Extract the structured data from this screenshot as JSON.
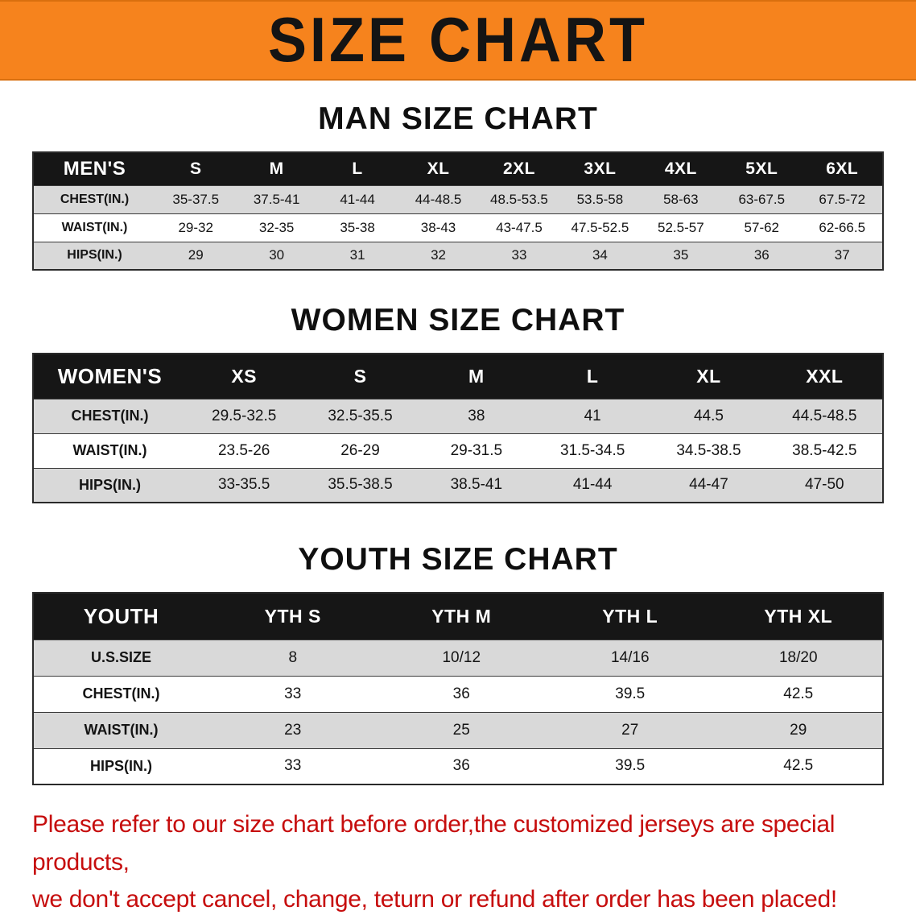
{
  "banner": {
    "title": "SIZE CHART"
  },
  "sections": [
    {
      "heading": "MAN SIZE CHART",
      "table": {
        "header": [
          "MEN'S",
          "S",
          "M",
          "L",
          "XL",
          "2XL",
          "3XL",
          "4XL",
          "5XL",
          "6XL"
        ],
        "rows": [
          [
            "CHEST(IN.)",
            "35-37.5",
            "37.5-41",
            "41-44",
            "44-48.5",
            "48.5-53.5",
            "53.5-58",
            "58-63",
            "63-67.5",
            "67.5-72"
          ],
          [
            "WAIST(IN.)",
            "29-32",
            "32-35",
            "35-38",
            "38-43",
            "43-47.5",
            "47.5-52.5",
            "52.5-57",
            "57-62",
            "62-66.5"
          ],
          [
            "HIPS(IN.)",
            "29",
            "30",
            "31",
            "32",
            "33",
            "34",
            "35",
            "36",
            "37"
          ]
        ]
      }
    },
    {
      "heading": "WOMEN SIZE CHART",
      "table": {
        "header": [
          "WOMEN'S",
          "XS",
          "S",
          "M",
          "L",
          "XL",
          "XXL"
        ],
        "rows": [
          [
            "CHEST(IN.)",
            "29.5-32.5",
            "32.5-35.5",
            "38",
            "41",
            "44.5",
            "44.5-48.5"
          ],
          [
            "WAIST(IN.)",
            "23.5-26",
            "26-29",
            "29-31.5",
            "31.5-34.5",
            "34.5-38.5",
            "38.5-42.5"
          ],
          [
            "HIPS(IN.)",
            "33-35.5",
            "35.5-38.5",
            "38.5-41",
            "41-44",
            "44-47",
            "47-50"
          ]
        ]
      }
    },
    {
      "heading": "YOUTH SIZE CHART",
      "table": {
        "header": [
          "YOUTH",
          "YTH S",
          "YTH M",
          "YTH L",
          "YTH XL"
        ],
        "rows": [
          [
            "U.S.SIZE",
            "8",
            "10/12",
            "14/16",
            "18/20"
          ],
          [
            "CHEST(IN.)",
            "33",
            "36",
            "39.5",
            "42.5"
          ],
          [
            "WAIST(IN.)",
            "23",
            "25",
            "27",
            "29"
          ],
          [
            "HIPS(IN.)",
            "33",
            "36",
            "39.5",
            "42.5"
          ]
        ]
      }
    }
  ],
  "disclaimer": {
    "line1": "Please refer to our size chart before order,the customized jerseys are special products,",
    "line2": "we don't accept cancel, change, teturn or refund after order has been placed!"
  },
  "colors": {
    "banner_orange": "#f6831d",
    "header_black": "#161616",
    "row_stripe_gray": "#d9d9d9",
    "disclaimer_red": "#c60d0d"
  }
}
